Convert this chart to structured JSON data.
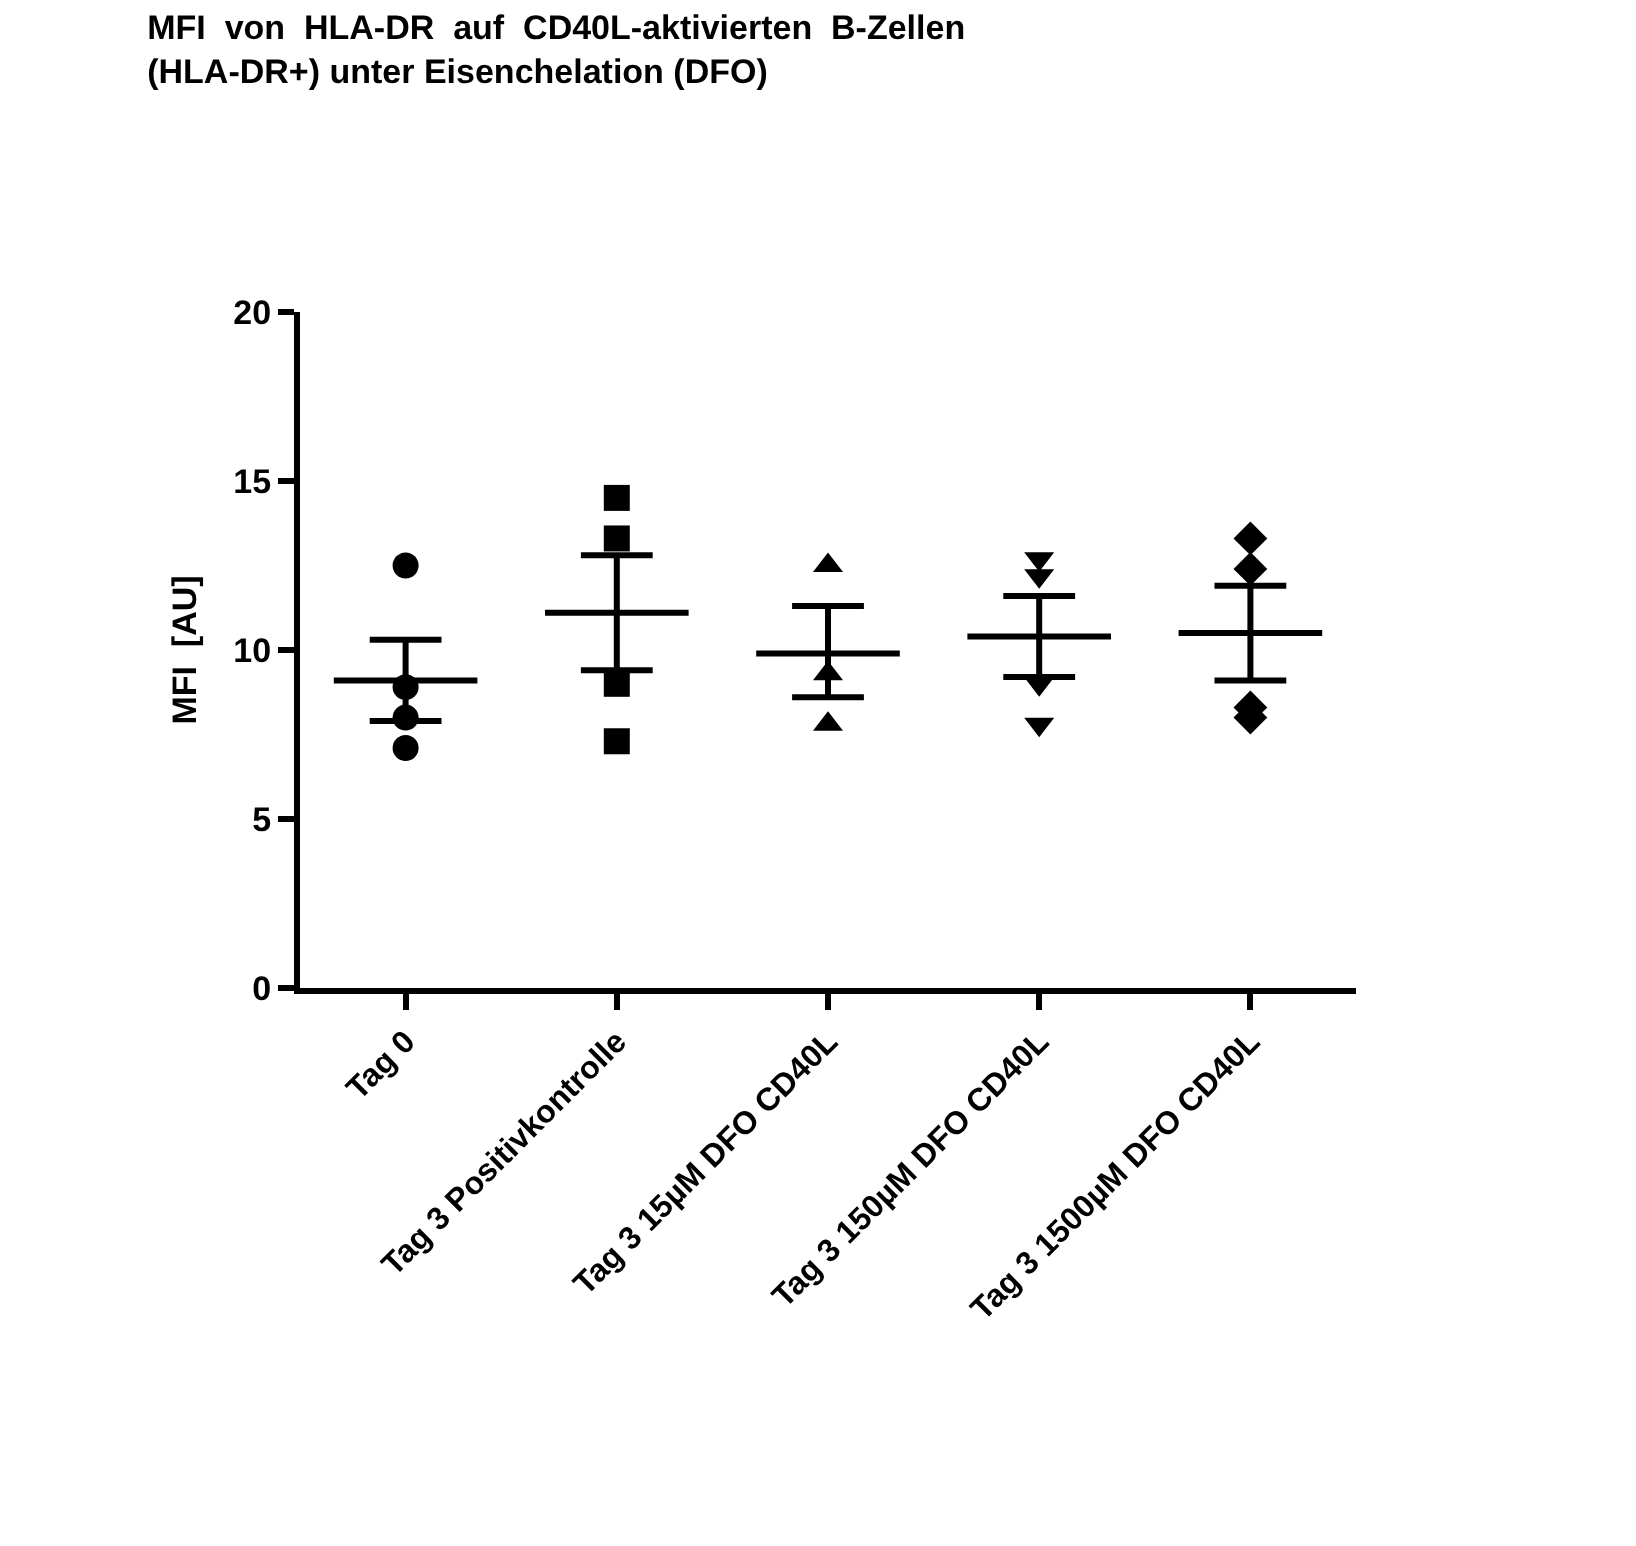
{
  "chart_data": {
    "type": "scatter",
    "title": "MFI  von  HLA-DR  auf  CD40L-aktivierten  B-Zellen\n(HLA-DR+) unter Eisenchelation (DFO)",
    "ylabel": "MFI  [AU]",
    "categories": [
      "Tag 0",
      "Tag 3 Positivkontrolle",
      "Tag 3 15µM DFO CD40L",
      "Tag 3 150µM DFO CD40L",
      "Tag 3 1500µM DFO CD40L"
    ],
    "ylim": [
      0,
      20
    ],
    "yticks": [
      0,
      5,
      10,
      15,
      20
    ],
    "grid": false,
    "legend": false,
    "series": [
      {
        "marker": "circle",
        "color": "#000000",
        "x": [
          "Tag 0",
          "Tag 0",
          "Tag 0",
          "Tag 0"
        ],
        "values": [
          12.5,
          8.9,
          8.0,
          7.1
        ]
      },
      {
        "marker": "square",
        "color": "#000000",
        "x": [
          "Tag 3 Positivkontrolle",
          "Tag 3 Positivkontrolle",
          "Tag 3 Positivkontrolle",
          "Tag 3 Positivkontrolle"
        ],
        "values": [
          14.5,
          13.3,
          9.0,
          7.3
        ]
      },
      {
        "marker": "triangle",
        "color": "#000000",
        "x": [
          "Tag 3 15µM DFO CD40L",
          "Tag 3 15µM DFO CD40L",
          "Tag 3 15µM DFO CD40L"
        ],
        "values": [
          12.5,
          9.3,
          7.8
        ]
      },
      {
        "marker": "triangle-down",
        "color": "#000000",
        "x": [
          "Tag 3 150µM DFO CD40L",
          "Tag 3 150µM DFO CD40L",
          "Tag 3 150µM DFO CD40L",
          "Tag 3 150µM DFO CD40L"
        ],
        "values": [
          12.7,
          12.2,
          9.0,
          7.8
        ]
      },
      {
        "marker": "diamond",
        "color": "#000000",
        "x": [
          "Tag 3 1500µM DFO CD40L",
          "Tag 3 1500µM DFO CD40L",
          "Tag 3 1500µM DFO CD40L",
          "Tag 3 1500µM DFO CD40L"
        ],
        "values": [
          13.3,
          12.4,
          8.3,
          8.0
        ]
      },
      {
        "type": "box",
        "color": "#000000",
        "boxes": [
          {
            "low": 7.9,
            "q1": 9.1,
            "median": 9.1,
            "q3": 9.1,
            "high": 10.3
          },
          {
            "low": 9.4,
            "q1": 11.1,
            "median": 11.1,
            "q3": 11.1,
            "high": 12.8
          },
          {
            "low": 8.6,
            "q1": 9.9,
            "median": 9.9,
            "q3": 9.9,
            "high": 11.3
          },
          {
            "low": 9.2,
            "q1": 10.4,
            "median": 10.4,
            "q3": 10.4,
            "high": 11.6
          },
          {
            "low": 9.1,
            "q1": 10.5,
            "median": 10.5,
            "q3": 10.5,
            "high": 11.9
          }
        ]
      }
    ]
  }
}
